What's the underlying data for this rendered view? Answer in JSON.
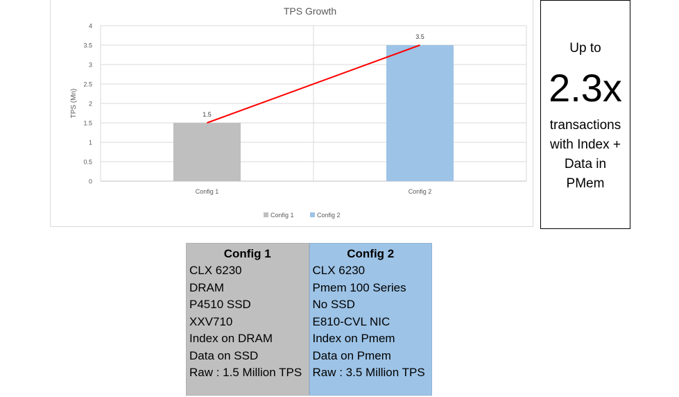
{
  "chart_data": {
    "type": "bar",
    "title": "TPS Growth",
    "categories": [
      "Config 1",
      "Config 2"
    ],
    "values": [
      1.5,
      3.5
    ],
    "data_labels": [
      "1.5",
      "3.5"
    ],
    "ylabel": "TPS (Mn)",
    "xlabel": "",
    "ylim": [
      0,
      4
    ],
    "yticks": [
      "0",
      "0.5",
      "1",
      "1.5",
      "2",
      "2.5",
      "3",
      "3.5",
      "4"
    ],
    "bar_colors": [
      "#bfbfbf",
      "#9dc3e6"
    ],
    "trend_line_color": "#ff0000",
    "legend": {
      "position": "bottom",
      "entries": [
        {
          "label": "Config 1",
          "color": "#bfbfbf"
        },
        {
          "label": "Config 2",
          "color": "#9dc3e6"
        }
      ]
    },
    "grid": true
  },
  "callout": {
    "top": "Up to",
    "big": "2.3x",
    "desc": "transactions with Index + Data in PMem"
  },
  "configs": [
    {
      "header": "Config 1",
      "rows": [
        "CLX 6230",
        "DRAM",
        "P4510 SSD",
        "XXV710",
        "Index on DRAM",
        "Data on SSD",
        "Raw : 1.5 Million TPS"
      ]
    },
    {
      "header": "Config 2",
      "rows": [
        "CLX 6230",
        "Pmem 100 Series",
        "No SSD",
        "E810-CVL NIC",
        "Index on Pmem",
        "Data on Pmem",
        "Raw : 3.5 Million TPS"
      ]
    }
  ]
}
